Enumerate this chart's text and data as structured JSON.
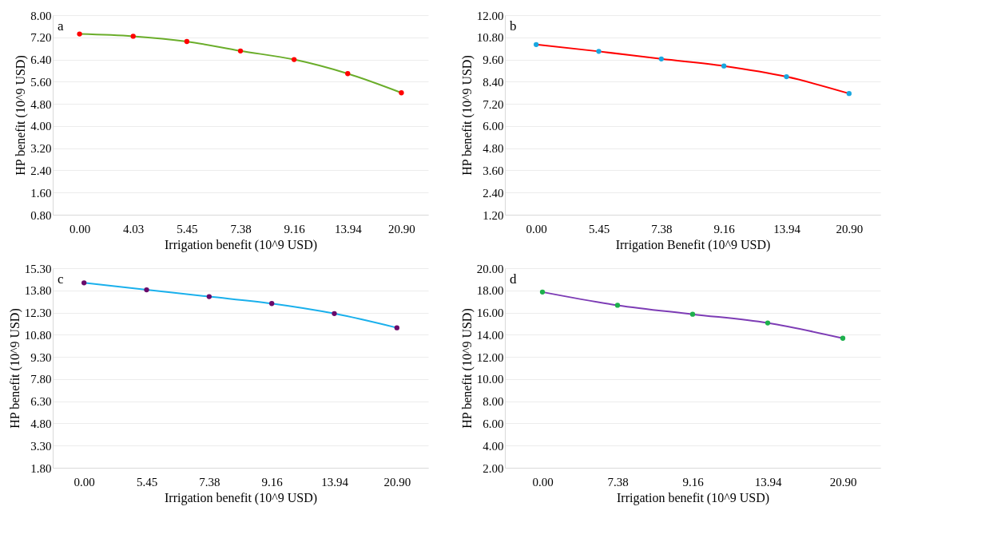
{
  "chart_data": [
    {
      "type": "line",
      "xlabel": "Irrigation benefit (10^9 USD)",
      "ylabel": "HP benefit (10^9  USD)",
      "annotations": [
        "a"
      ],
      "categories": [
        "0.00",
        "4.03",
        "5.45",
        "7.38",
        "9.16",
        "13.94",
        "20.90"
      ],
      "ylim": [
        0.8,
        8.0
      ],
      "yticks": [
        {
          "value": 0.8,
          "label": "0.80"
        },
        {
          "value": 1.6,
          "label": "1.60"
        },
        {
          "value": 2.4,
          "label": "2.40"
        },
        {
          "value": 3.2,
          "label": "3.20"
        },
        {
          "value": 4.0,
          "label": "4.00"
        },
        {
          "value": 4.8,
          "label": "4.80"
        },
        {
          "value": 5.6,
          "label": "5.60"
        },
        {
          "value": 6.4,
          "label": "6.40"
        },
        {
          "value": 7.2,
          "label": "7.20"
        },
        {
          "value": 8.0,
          "label": "8.00"
        }
      ],
      "grid": "y",
      "marker": "circle",
      "series": [
        {
          "color": "#6aad2a",
          "colors": [
            "#ff0000",
            "#ff0000",
            "#ff0000",
            "#ff0000",
            "#ff0000",
            "#ff0000",
            "#ff0000"
          ],
          "values": [
            7.32,
            7.24,
            7.05,
            6.71,
            6.4,
            5.89,
            5.2
          ]
        }
      ]
    },
    {
      "type": "line",
      "xlabel": "Irrigation Benefit (10^9 USD)",
      "ylabel": "HP benefit (10^9 USD)",
      "annotations": [
        "b"
      ],
      "categories": [
        "0.00",
        "5.45",
        "7.38",
        "9.16",
        "13.94",
        "20.90"
      ],
      "ylim": [
        1.2,
        12.0
      ],
      "yticks": [
        {
          "value": 1.2,
          "label": "1.20"
        },
        {
          "value": 2.4,
          "label": "2.40"
        },
        {
          "value": 3.6,
          "label": "3.60"
        },
        {
          "value": 4.8,
          "label": "4.80"
        },
        {
          "value": 6.0,
          "label": "6.00"
        },
        {
          "value": 7.2,
          "label": "7.20"
        },
        {
          "value": 8.4,
          "label": "8.40"
        },
        {
          "value": 9.6,
          "label": "9.60"
        },
        {
          "value": 10.8,
          "label": "10.80"
        },
        {
          "value": 12.0,
          "label": "12.00"
        }
      ],
      "grid": "y",
      "marker": "circle",
      "series": [
        {
          "color": "#ff0000",
          "colors": [
            "#1aa7e0",
            "#1aa7e0",
            "#1aa7e0",
            "#1aa7e0",
            "#1aa7e0",
            "#1aa7e0"
          ],
          "values": [
            10.41,
            10.04,
            9.63,
            9.25,
            8.67,
            7.76
          ]
        }
      ]
    },
    {
      "type": "line",
      "xlabel": "Irrigation benefit (10^9 USD)",
      "ylabel": "HP benefit (10^9 USD)",
      "annotations": [
        "c"
      ],
      "categories": [
        "0.00",
        "5.45",
        "7.38",
        "9.16",
        "13.94",
        "20.90"
      ],
      "ylim": [
        1.8,
        15.3
      ],
      "yticks": [
        {
          "value": 1.8,
          "label": "1.80"
        },
        {
          "value": 3.3,
          "label": "3.30"
        },
        {
          "value": 4.8,
          "label": "4.80"
        },
        {
          "value": 6.3,
          "label": "6.30"
        },
        {
          "value": 7.8,
          "label": "7.80"
        },
        {
          "value": 9.3,
          "label": "9.30"
        },
        {
          "value": 10.8,
          "label": "10.80"
        },
        {
          "value": 12.3,
          "label": "12.30"
        },
        {
          "value": 13.8,
          "label": "13.80"
        },
        {
          "value": 15.3,
          "label": "15.30"
        }
      ],
      "grid": "y",
      "marker": "circle",
      "series": [
        {
          "color": "#1ab0ec",
          "colors": [
            "#6a0a6a",
            "#6a0a6a",
            "#6a0a6a",
            "#6a0a6a",
            "#6a0a6a",
            "#6a0a6a"
          ],
          "values": [
            14.31,
            13.84,
            13.38,
            12.91,
            12.23,
            11.27
          ]
        }
      ]
    },
    {
      "type": "line",
      "xlabel": "Irrigation benefit (10^9 USD)",
      "ylabel": "HP benefit (10^9 USD)",
      "annotations": [
        "d"
      ],
      "categories": [
        "0.00",
        "7.38",
        "9.16",
        "13.94",
        "20.90"
      ],
      "ylim": [
        2.0,
        20.0
      ],
      "yticks": [
        {
          "value": 2.0,
          "label": "2.00"
        },
        {
          "value": 4.0,
          "label": "4.00"
        },
        {
          "value": 6.0,
          "label": "6.00"
        },
        {
          "value": 8.0,
          "label": "8.00"
        },
        {
          "value": 10.0,
          "label": "10.00"
        },
        {
          "value": 12.0,
          "label": "12.00"
        },
        {
          "value": 14.0,
          "label": "14.00"
        },
        {
          "value": 16.0,
          "label": "16.00"
        },
        {
          "value": 18.0,
          "label": "18.00"
        },
        {
          "value": 20.0,
          "label": "20.00"
        }
      ],
      "grid": "y",
      "marker": "circle",
      "series": [
        {
          "color": "#7d3cb5",
          "colors": [
            "#1db04c",
            "#1db04c",
            "#1db04c",
            "#1db04c",
            "#1db04c"
          ],
          "values": [
            17.85,
            16.66,
            15.85,
            15.06,
            13.68
          ]
        }
      ]
    }
  ]
}
